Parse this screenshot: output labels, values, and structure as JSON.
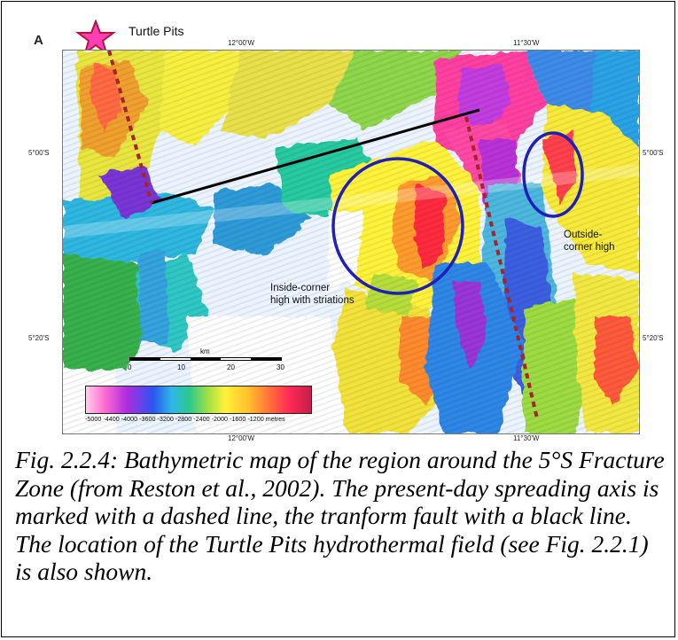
{
  "figure": {
    "panel_letter": "A",
    "legend_label": "Turtle Pits",
    "top_lon_labels": [
      "12°00'W",
      "11°30'W"
    ],
    "bottom_lon_labels": [
      "12°00'W",
      "11°30'W"
    ],
    "left_lat_labels": [
      "5°00'S",
      "5°20'S"
    ],
    "right_lat_labels": [
      "5°00'S",
      "5°20'S"
    ],
    "inside_label": [
      "Inside-corner",
      "high with striations"
    ],
    "outside_label": [
      "Outside-",
      "corner high"
    ],
    "scale": {
      "unit": "km",
      "ticks": [
        "0",
        "10",
        "20",
        "30"
      ]
    },
    "colorbar_labels": "-5000 -4400 -4000 -3600 -3200 -2800 -2400 -2000 -1600 -1200 metres",
    "colors": {
      "spreading_axis": "#a4262c",
      "transform_fault": "#000000",
      "highlight_ellipse": "#2020b8",
      "star": "#ff3fb3"
    }
  },
  "caption": "Fig. 2.2.4: Bathymetric map of the region around the 5°S Fracture Zone (from Reston et al., 2002). The present-day spreading axis is marked with a dashed line, the tranform fault with a black line. The location of the Turtle Pits hydrothermal field (see Fig. 2.2.1) is also shown."
}
